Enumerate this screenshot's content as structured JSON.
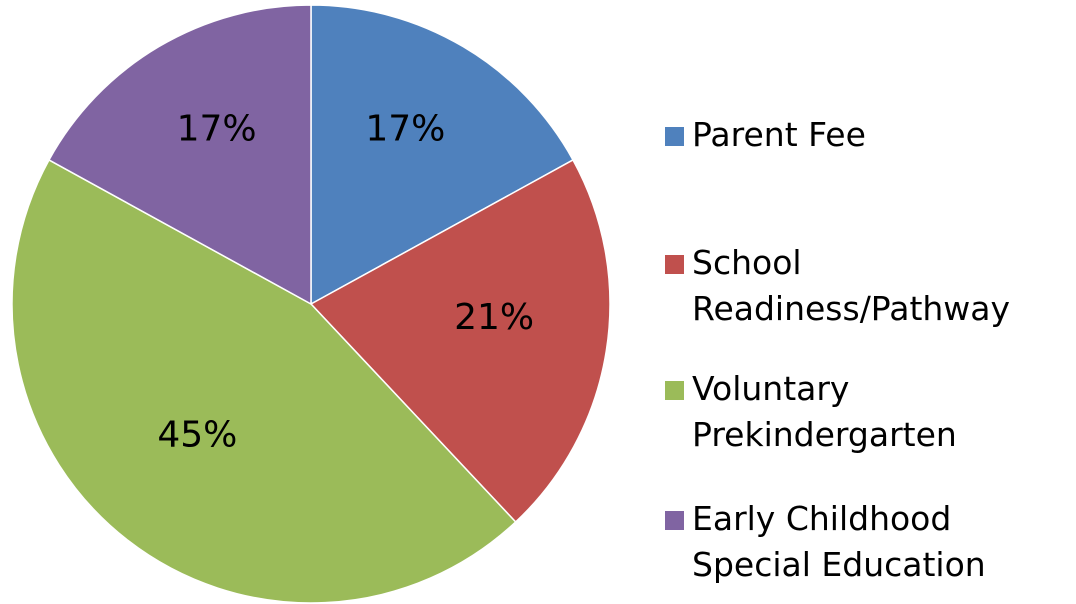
{
  "chart_data": {
    "type": "pie",
    "categories": [
      "Parent Fee",
      "School Readiness/Pathway",
      "Voluntary Prekindergarten",
      "Early Childhood Special Education"
    ],
    "values": [
      17,
      21,
      45,
      17
    ],
    "value_labels": [
      "17%",
      "21%",
      "45%",
      "17%"
    ],
    "colors": [
      "#4f81bd",
      "#c0504d",
      "#9bbb59",
      "#8064a2"
    ],
    "legend": "right"
  }
}
